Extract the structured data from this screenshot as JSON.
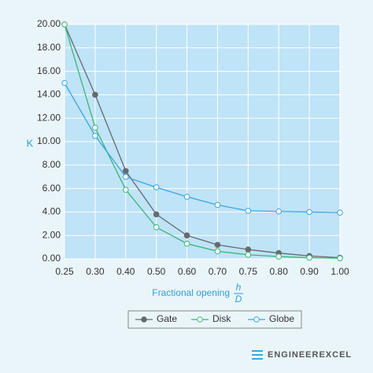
{
  "chart_data": {
    "type": "line",
    "ylabel": "K",
    "xlabel": "Fractional opening",
    "xlabel_fraction": {
      "numerator": "h",
      "denominator": "D"
    },
    "categories": [
      "0.25",
      "0.30",
      "0.40",
      "0.50",
      "0.60",
      "0.70",
      "0.75",
      "0.80",
      "0.90",
      "1.00"
    ],
    "series": [
      {
        "name": "Gate",
        "color": "#666a6e",
        "marker_fill": "#666a6e",
        "values": [
          20,
          14,
          7.5,
          3.8,
          2.0,
          1.2,
          0.8,
          0.5,
          0.25,
          0.1
        ]
      },
      {
        "name": "Disk",
        "color": "#3bb575",
        "marker_fill": "#ffffff",
        "values": [
          20,
          11.2,
          5.9,
          2.7,
          1.3,
          0.65,
          0.35,
          0.2,
          0.1,
          0.05
        ]
      },
      {
        "name": "Globe",
        "color": "#3aa6de",
        "marker_fill": "#ffffff",
        "values": [
          15,
          10.5,
          7.0,
          6.1,
          5.3,
          4.6,
          4.1,
          4.05,
          4.0,
          3.95
        ]
      }
    ],
    "ylim": [
      0,
      20
    ],
    "yticks": [
      {
        "value": 0,
        "label": "0.00"
      },
      {
        "value": 2,
        "label": "2.00"
      },
      {
        "value": 4,
        "label": "4.00"
      },
      {
        "value": 6,
        "label": "6.00"
      },
      {
        "value": 8,
        "label": "8.00"
      },
      {
        "value": 10,
        "label": "10.00"
      },
      {
        "value": 12,
        "label": "12.00"
      },
      {
        "value": 14,
        "label": "14.00"
      },
      {
        "value": 16,
        "label": "16.00"
      },
      {
        "value": 18,
        "label": "18.00"
      },
      {
        "value": 20,
        "label": "20.00"
      }
    ],
    "grid": true,
    "legend": "bottom",
    "logo": "ENGINEEREXCEL"
  }
}
